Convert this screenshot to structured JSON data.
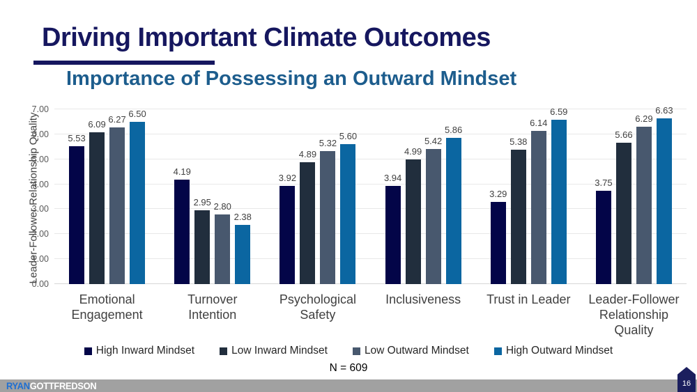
{
  "slide": {
    "title": "Driving Important Climate Outcomes",
    "subtitle": "Importance of Possessing an Outward Mindset",
    "sample_note": "N = 609",
    "page_number": "16",
    "logo_first": "RYAN",
    "logo_second": "GOTTFREDSON"
  },
  "colors": {
    "title_navy": "#16175f",
    "subtitle_blue": "#1d5d8d",
    "axis_text_gray": "#595959",
    "label_gray": "#404040",
    "gridline_gray": "#e8e8e8",
    "footer_bar_gray": "#a1a1a1",
    "logo_blue": "#1e6fd2",
    "page_marker_navy": "#1b1f5e"
  },
  "chart_data": {
    "type": "bar",
    "title": "Importance of Possessing an Outward Mindset",
    "xlabel": "",
    "ylabel": "Leader-Follower Relationship Quality",
    "ylim": [
      0,
      7
    ],
    "yticks": [
      "0.00",
      "1.00",
      "2.00",
      "3.00",
      "4.00",
      "5.00",
      "6.00",
      "7.00"
    ],
    "grid": true,
    "legend_position": "bottom",
    "value_label_decimals": 2,
    "categories": [
      "Emotional Engagement",
      "Turnover Intention",
      "Psychological Safety",
      "Inclusiveness",
      "Trust in Leader",
      "Leader-Follower Relationship Quality"
    ],
    "series": [
      {
        "name": "High Inward Mindset",
        "color": "#030548",
        "values": [
          5.53,
          4.19,
          3.92,
          3.94,
          3.29,
          3.75
        ]
      },
      {
        "name": "Low Inward Mindset",
        "color": "#212e3d",
        "values": [
          6.09,
          2.95,
          4.89,
          4.99,
          5.38,
          5.66
        ]
      },
      {
        "name": "Low Outward Mindset",
        "color": "#48586e",
        "values": [
          6.27,
          2.8,
          5.32,
          5.42,
          6.14,
          6.29
        ]
      },
      {
        "name": "High Outward Mindset",
        "color": "#0b66a1",
        "values": [
          6.5,
          2.38,
          5.6,
          5.86,
          6.59,
          6.63
        ]
      }
    ],
    "annotation": "N = 609"
  }
}
